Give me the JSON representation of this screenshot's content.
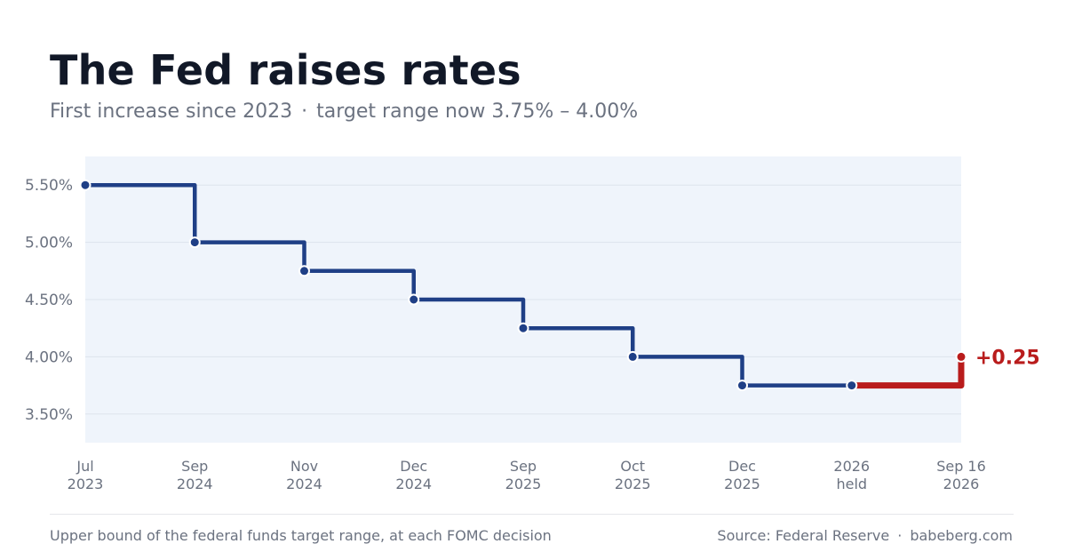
{
  "header": {
    "title": "The Fed raises rates",
    "subtitle_part1": "First increase since 2023",
    "subtitle_separator": "·",
    "subtitle_part2": "target range now 3.75% – 4.00%"
  },
  "footer": {
    "note": "Upper bound of the federal funds target range, at each FOMC decision",
    "source": "Source: Federal Reserve",
    "separator": "·",
    "site": "babeberg.com"
  },
  "colors": {
    "background": "#ffffff",
    "plot_background": "#eff4fb",
    "gridline": "#dde3ec",
    "series": "#1f3f86",
    "highlight": "#b91c1c",
    "text_dark": "#111827",
    "text_muted": "#6b7280"
  },
  "chart_data": {
    "type": "line",
    "step": true,
    "title": "The Fed raises rates",
    "categories": [
      [
        "Jul",
        "2023"
      ],
      [
        "Sep",
        "2024"
      ],
      [
        "Nov",
        "2024"
      ],
      [
        "Dec",
        "2024"
      ],
      [
        "Sep",
        "2025"
      ],
      [
        "Oct",
        "2025"
      ],
      [
        "Dec",
        "2025"
      ],
      [
        "2026",
        "held"
      ],
      [
        "Sep 16",
        "2026"
      ]
    ],
    "series": [
      {
        "values": [
          5.5,
          5.0,
          4.75,
          4.5,
          4.25,
          4.0,
          3.75,
          3.75,
          4.0
        ]
      }
    ],
    "highlight": {
      "from_index": 7,
      "to_index": 8,
      "label": "+0.25"
    },
    "ylim": [
      3.25,
      5.75
    ],
    "yticks": [
      3.5,
      4.0,
      4.5,
      5.0,
      5.5
    ],
    "ytick_labels": [
      "3.50%",
      "4.00%",
      "4.50%",
      "5.00%",
      "5.50%"
    ],
    "grid": true,
    "legend": "none"
  }
}
